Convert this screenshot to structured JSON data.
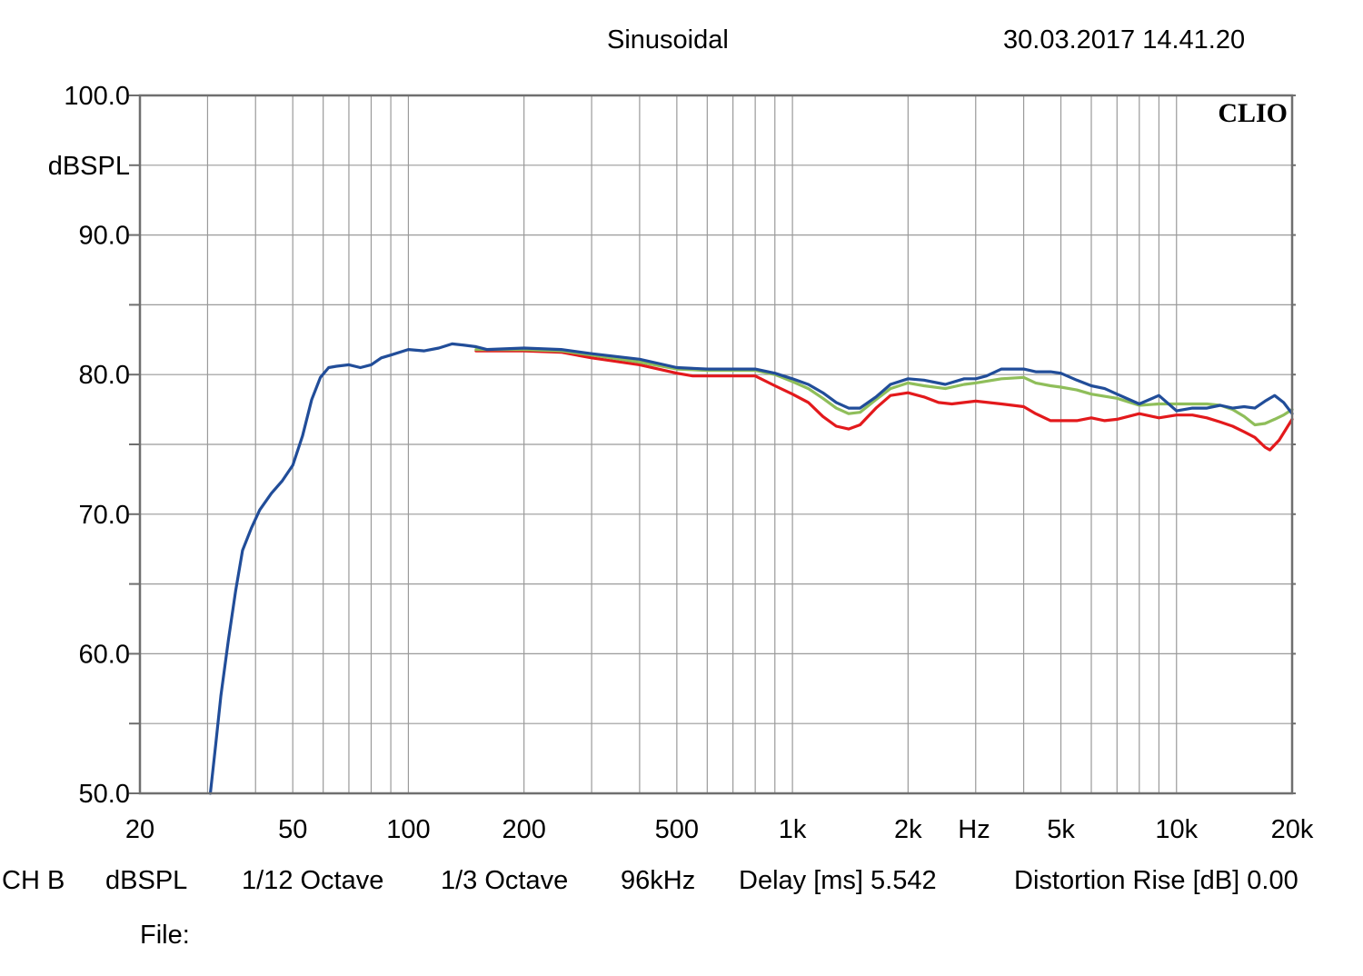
{
  "header": {
    "title": "Sinusoidal",
    "timestamp": "30.03.2017 14.41.20"
  },
  "watermark": "CLIO",
  "footer": {
    "channel": "CH B",
    "unit": "dBSPL",
    "resolution": "1/12 Octave",
    "smoothing": "1/3 Octave",
    "sample_rate": "96kHz",
    "delay": "Delay [ms] 5.542",
    "distortion": "Distortion Rise [dB] 0.00",
    "file_label": "File:"
  },
  "chart_data": {
    "type": "line",
    "title": "Sinusoidal",
    "xlabel": "Hz",
    "ylabel": "dBSPL",
    "x_scale": "log",
    "xlim": [
      20,
      20000
    ],
    "ylim": [
      50,
      100
    ],
    "grid": true,
    "x_ticks": [
      {
        "value": 20,
        "label": "20"
      },
      {
        "value": 50,
        "label": "50"
      },
      {
        "value": 100,
        "label": "100"
      },
      {
        "value": 200,
        "label": "200"
      },
      {
        "value": 500,
        "label": "500"
      },
      {
        "value": 1000,
        "label": "1k"
      },
      {
        "value": 2000,
        "label": "2k"
      },
      {
        "value": 5000,
        "label": "5k"
      },
      {
        "value": 10000,
        "label": "10k"
      },
      {
        "value": 20000,
        "label": "20k"
      }
    ],
    "y_ticks": [
      {
        "value": 100,
        "label": "100.0"
      },
      {
        "value": 90,
        "label": "90.0"
      },
      {
        "value": 80,
        "label": "80.0"
      },
      {
        "value": 70,
        "label": "70.0"
      },
      {
        "value": 60,
        "label": "60.0"
      },
      {
        "value": 50,
        "label": "50.0"
      }
    ],
    "series": [
      {
        "color": "#e3191c",
        "points": [
          [
            150,
            81.7
          ],
          [
            200,
            81.7
          ],
          [
            250,
            81.6
          ],
          [
            300,
            81.2
          ],
          [
            400,
            80.7
          ],
          [
            500,
            80.1
          ],
          [
            550,
            79.9
          ],
          [
            600,
            79.9
          ],
          [
            700,
            79.9
          ],
          [
            800,
            79.9
          ],
          [
            900,
            79.2
          ],
          [
            1000,
            78.6
          ],
          [
            1100,
            78.0
          ],
          [
            1200,
            77.0
          ],
          [
            1300,
            76.3
          ],
          [
            1400,
            76.1
          ],
          [
            1500,
            76.4
          ],
          [
            1650,
            77.6
          ],
          [
            1800,
            78.5
          ],
          [
            2000,
            78.7
          ],
          [
            2200,
            78.4
          ],
          [
            2400,
            78.0
          ],
          [
            2600,
            77.9
          ],
          [
            2800,
            78.0
          ],
          [
            3000,
            78.1
          ],
          [
            3500,
            77.9
          ],
          [
            4000,
            77.7
          ],
          [
            4300,
            77.2
          ],
          [
            4700,
            76.7
          ],
          [
            5000,
            76.7
          ],
          [
            5500,
            76.7
          ],
          [
            6000,
            76.9
          ],
          [
            6500,
            76.7
          ],
          [
            7000,
            76.8
          ],
          [
            8000,
            77.2
          ],
          [
            9000,
            76.9
          ],
          [
            10000,
            77.1
          ],
          [
            11000,
            77.1
          ],
          [
            12000,
            76.9
          ],
          [
            13000,
            76.6
          ],
          [
            14000,
            76.3
          ],
          [
            15000,
            75.9
          ],
          [
            16000,
            75.5
          ],
          [
            17000,
            74.8
          ],
          [
            17500,
            74.6
          ],
          [
            18500,
            75.3
          ],
          [
            20000,
            76.8
          ]
        ]
      },
      {
        "color": "#8fbe5a",
        "points": [
          [
            150,
            81.8
          ],
          [
            200,
            81.8
          ],
          [
            250,
            81.7
          ],
          [
            300,
            81.4
          ],
          [
            400,
            80.9
          ],
          [
            500,
            80.4
          ],
          [
            600,
            80.3
          ],
          [
            700,
            80.3
          ],
          [
            800,
            80.3
          ],
          [
            900,
            80.0
          ],
          [
            1000,
            79.5
          ],
          [
            1100,
            79.0
          ],
          [
            1200,
            78.3
          ],
          [
            1300,
            77.6
          ],
          [
            1400,
            77.2
          ],
          [
            1500,
            77.3
          ],
          [
            1650,
            78.2
          ],
          [
            1800,
            79.0
          ],
          [
            2000,
            79.4
          ],
          [
            2200,
            79.2
          ],
          [
            2500,
            79.0
          ],
          [
            2800,
            79.3
          ],
          [
            3000,
            79.4
          ],
          [
            3500,
            79.7
          ],
          [
            4000,
            79.8
          ],
          [
            4300,
            79.4
          ],
          [
            4700,
            79.2
          ],
          [
            5000,
            79.1
          ],
          [
            5500,
            78.9
          ],
          [
            6000,
            78.6
          ],
          [
            7000,
            78.3
          ],
          [
            8000,
            77.8
          ],
          [
            9000,
            77.9
          ],
          [
            10000,
            77.9
          ],
          [
            12000,
            77.9
          ],
          [
            13000,
            77.8
          ],
          [
            14000,
            77.5
          ],
          [
            15000,
            77.0
          ],
          [
            16000,
            76.4
          ],
          [
            17000,
            76.5
          ],
          [
            18000,
            76.8
          ],
          [
            19000,
            77.1
          ],
          [
            20000,
            77.5
          ]
        ]
      },
      {
        "color": "#214d99",
        "points": [
          [
            30.5,
            50.0
          ],
          [
            31.5,
            53.5
          ],
          [
            32.5,
            57.0
          ],
          [
            34,
            61.0
          ],
          [
            35.5,
            64.5
          ],
          [
            37,
            67.4
          ],
          [
            39,
            69.0
          ],
          [
            41,
            70.3
          ],
          [
            44,
            71.5
          ],
          [
            47,
            72.4
          ],
          [
            50,
            73.5
          ],
          [
            53,
            75.6
          ],
          [
            56,
            78.2
          ],
          [
            59,
            79.8
          ],
          [
            62,
            80.5
          ],
          [
            65,
            80.6
          ],
          [
            70,
            80.7
          ],
          [
            75,
            80.5
          ],
          [
            80,
            80.7
          ],
          [
            85,
            81.2
          ],
          [
            90,
            81.4
          ],
          [
            100,
            81.8
          ],
          [
            110,
            81.7
          ],
          [
            120,
            81.9
          ],
          [
            130,
            82.2
          ],
          [
            140,
            82.1
          ],
          [
            150,
            82.0
          ],
          [
            160,
            81.8
          ],
          [
            200,
            81.9
          ],
          [
            250,
            81.8
          ],
          [
            300,
            81.5
          ],
          [
            400,
            81.1
          ],
          [
            500,
            80.5
          ],
          [
            600,
            80.4
          ],
          [
            700,
            80.4
          ],
          [
            800,
            80.4
          ],
          [
            900,
            80.1
          ],
          [
            1000,
            79.7
          ],
          [
            1100,
            79.3
          ],
          [
            1200,
            78.7
          ],
          [
            1300,
            78.0
          ],
          [
            1400,
            77.6
          ],
          [
            1500,
            77.6
          ],
          [
            1650,
            78.4
          ],
          [
            1800,
            79.3
          ],
          [
            2000,
            79.7
          ],
          [
            2200,
            79.6
          ],
          [
            2500,
            79.3
          ],
          [
            2800,
            79.7
          ],
          [
            3000,
            79.7
          ],
          [
            3200,
            79.9
          ],
          [
            3500,
            80.4
          ],
          [
            4000,
            80.4
          ],
          [
            4300,
            80.2
          ],
          [
            4700,
            80.2
          ],
          [
            5000,
            80.1
          ],
          [
            5500,
            79.6
          ],
          [
            6000,
            79.2
          ],
          [
            6500,
            79.0
          ],
          [
            7000,
            78.6
          ],
          [
            8000,
            77.9
          ],
          [
            9000,
            78.5
          ],
          [
            10000,
            77.4
          ],
          [
            11000,
            77.6
          ],
          [
            12000,
            77.6
          ],
          [
            13000,
            77.8
          ],
          [
            14000,
            77.6
          ],
          [
            15000,
            77.7
          ],
          [
            16000,
            77.6
          ],
          [
            17000,
            78.1
          ],
          [
            18000,
            78.5
          ],
          [
            19000,
            78.0
          ],
          [
            20000,
            77.2
          ]
        ]
      }
    ]
  }
}
